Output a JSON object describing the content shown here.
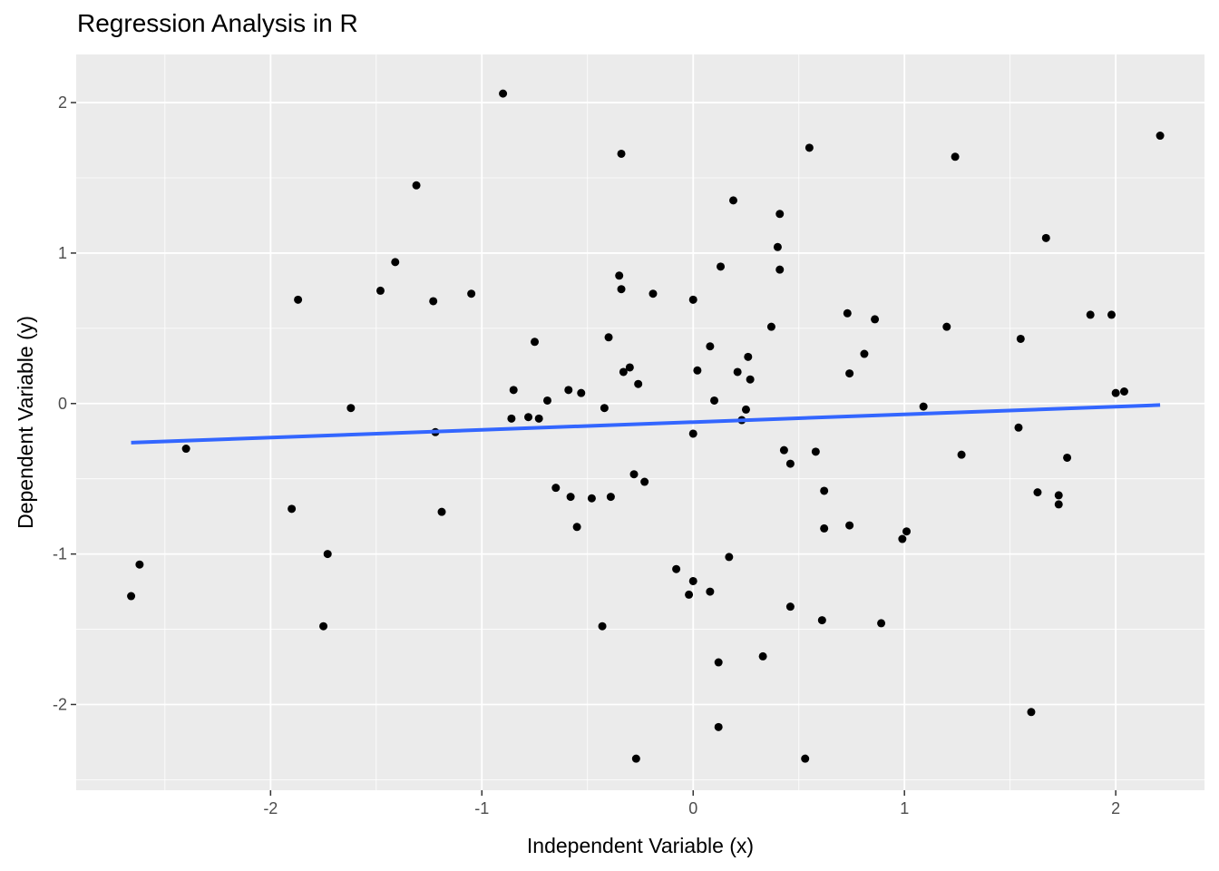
{
  "chart_data": {
    "type": "scatter",
    "title": "Regression Analysis in R",
    "xlabel": "Independent Variable (x)",
    "ylabel": "Dependent Variable (y)",
    "xlim": [
      -2.92,
      2.42
    ],
    "ylim": [
      -2.57,
      2.32
    ],
    "x_ticks": [
      -2,
      -1,
      0,
      1,
      2
    ],
    "y_ticks": [
      -2,
      -1,
      0,
      1,
      2
    ],
    "grid": true,
    "panel_background": "#ebebeb",
    "point_color": "#000000",
    "line_color": "#3366ff",
    "regression_line": {
      "x": [
        -2.66,
        2.21
      ],
      "y": [
        -0.26,
        -0.01
      ]
    },
    "points": [
      {
        "x": -2.66,
        "y": -1.28
      },
      {
        "x": -2.62,
        "y": -1.07
      },
      {
        "x": -2.4,
        "y": -0.3
      },
      {
        "x": -1.9,
        "y": -0.7
      },
      {
        "x": -1.87,
        "y": 0.69
      },
      {
        "x": -1.75,
        "y": -1.48
      },
      {
        "x": -1.73,
        "y": -1.0
      },
      {
        "x": -1.62,
        "y": -0.03
      },
      {
        "x": -1.48,
        "y": 0.75
      },
      {
        "x": -1.41,
        "y": 0.94
      },
      {
        "x": -1.31,
        "y": 1.45
      },
      {
        "x": -1.23,
        "y": 0.68
      },
      {
        "x": -1.22,
        "y": -0.19
      },
      {
        "x": -1.19,
        "y": -0.72
      },
      {
        "x": -1.05,
        "y": 0.73
      },
      {
        "x": -0.9,
        "y": 2.06
      },
      {
        "x": -0.86,
        "y": -0.1
      },
      {
        "x": -0.85,
        "y": 0.09
      },
      {
        "x": -0.78,
        "y": -0.09
      },
      {
        "x": -0.75,
        "y": 0.41
      },
      {
        "x": -0.73,
        "y": -0.1
      },
      {
        "x": -0.69,
        "y": 0.02
      },
      {
        "x": -0.65,
        "y": -0.56
      },
      {
        "x": -0.59,
        "y": 0.09
      },
      {
        "x": -0.58,
        "y": -0.62
      },
      {
        "x": -0.55,
        "y": -0.82
      },
      {
        "x": -0.53,
        "y": 0.07
      },
      {
        "x": -0.48,
        "y": -0.63
      },
      {
        "x": -0.43,
        "y": -1.48
      },
      {
        "x": -0.42,
        "y": -0.03
      },
      {
        "x": -0.4,
        "y": 0.44
      },
      {
        "x": -0.39,
        "y": -0.62
      },
      {
        "x": -0.35,
        "y": 0.85
      },
      {
        "x": -0.34,
        "y": 1.66
      },
      {
        "x": -0.34,
        "y": 0.76
      },
      {
        "x": -0.33,
        "y": 0.21
      },
      {
        "x": -0.3,
        "y": 0.24
      },
      {
        "x": -0.28,
        "y": -0.47
      },
      {
        "x": -0.27,
        "y": -2.36
      },
      {
        "x": -0.26,
        "y": 0.13
      },
      {
        "x": -0.23,
        "y": -0.52
      },
      {
        "x": -0.19,
        "y": 0.73
      },
      {
        "x": -0.08,
        "y": -1.1
      },
      {
        "x": -0.02,
        "y": -1.27
      },
      {
        "x": 0.0,
        "y": 0.69
      },
      {
        "x": 0.0,
        "y": -0.2
      },
      {
        "x": 0.0,
        "y": -1.18
      },
      {
        "x": 0.02,
        "y": 0.22
      },
      {
        "x": 0.08,
        "y": -1.25
      },
      {
        "x": 0.08,
        "y": 0.38
      },
      {
        "x": 0.1,
        "y": 0.02
      },
      {
        "x": 0.12,
        "y": -2.15
      },
      {
        "x": 0.12,
        "y": -1.72
      },
      {
        "x": 0.13,
        "y": 0.91
      },
      {
        "x": 0.17,
        "y": -1.02
      },
      {
        "x": 0.19,
        "y": 1.35
      },
      {
        "x": 0.21,
        "y": 0.21
      },
      {
        "x": 0.23,
        "y": -0.11
      },
      {
        "x": 0.25,
        "y": -0.04
      },
      {
        "x": 0.26,
        "y": 0.31
      },
      {
        "x": 0.27,
        "y": 0.16
      },
      {
        "x": 0.33,
        "y": -1.68
      },
      {
        "x": 0.37,
        "y": 0.51
      },
      {
        "x": 0.4,
        "y": 1.04
      },
      {
        "x": 0.41,
        "y": 1.26
      },
      {
        "x": 0.41,
        "y": 0.89
      },
      {
        "x": 0.43,
        "y": -0.31
      },
      {
        "x": 0.46,
        "y": -1.35
      },
      {
        "x": 0.46,
        "y": -0.4
      },
      {
        "x": 0.53,
        "y": -2.36
      },
      {
        "x": 0.55,
        "y": 1.7
      },
      {
        "x": 0.58,
        "y": -0.32
      },
      {
        "x": 0.61,
        "y": -1.44
      },
      {
        "x": 0.62,
        "y": -0.83
      },
      {
        "x": 0.62,
        "y": -0.58
      },
      {
        "x": 0.73,
        "y": 0.6
      },
      {
        "x": 0.74,
        "y": 0.2
      },
      {
        "x": 0.74,
        "y": -0.81
      },
      {
        "x": 0.81,
        "y": 0.33
      },
      {
        "x": 0.86,
        "y": 0.56
      },
      {
        "x": 0.89,
        "y": -1.46
      },
      {
        "x": 0.99,
        "y": -0.9
      },
      {
        "x": 1.01,
        "y": -0.85
      },
      {
        "x": 1.09,
        "y": -0.02
      },
      {
        "x": 1.2,
        "y": 0.51
      },
      {
        "x": 1.24,
        "y": 1.64
      },
      {
        "x": 1.27,
        "y": -0.34
      },
      {
        "x": 1.54,
        "y": -0.16
      },
      {
        "x": 1.55,
        "y": 0.43
      },
      {
        "x": 1.6,
        "y": -2.05
      },
      {
        "x": 1.63,
        "y": -0.59
      },
      {
        "x": 1.67,
        "y": 1.1
      },
      {
        "x": 1.73,
        "y": -0.61
      },
      {
        "x": 1.73,
        "y": -0.67
      },
      {
        "x": 1.77,
        "y": -0.36
      },
      {
        "x": 1.88,
        "y": 0.59
      },
      {
        "x": 1.98,
        "y": 0.59
      },
      {
        "x": 2.0,
        "y": 0.07
      },
      {
        "x": 2.04,
        "y": 0.08
      },
      {
        "x": 2.21,
        "y": 1.78
      }
    ]
  }
}
